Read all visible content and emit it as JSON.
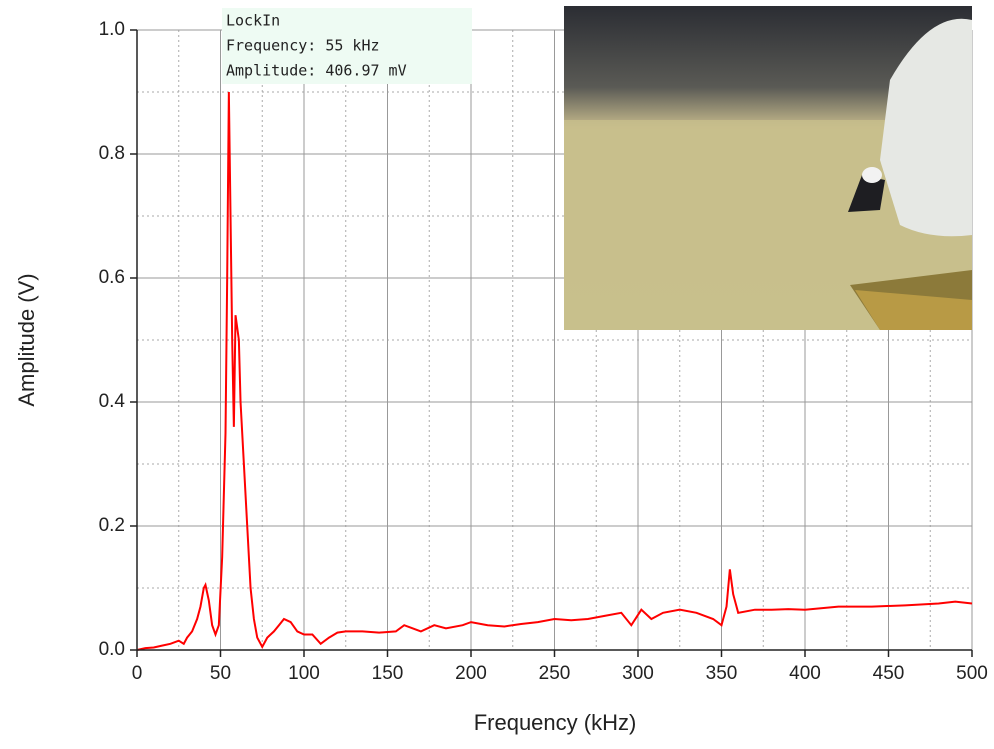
{
  "chart_data": {
    "type": "line",
    "xlabel": "Frequency (kHz)",
    "ylabel": "Amplitude (V)",
    "annotation": [
      "LockIn",
      "Frequency: 55 kHz",
      "Amplitude: 406.97 mV"
    ],
    "x": [
      0,
      5,
      10,
      15,
      20,
      25,
      28,
      30,
      33,
      36,
      38,
      40,
      41,
      43,
      45,
      47,
      49,
      51,
      53,
      54,
      55,
      56,
      57,
      58,
      59,
      60,
      61,
      62,
      64,
      66,
      68,
      70,
      72,
      75,
      78,
      82,
      85,
      88,
      92,
      96,
      100,
      105,
      110,
      115,
      120,
      125,
      135,
      145,
      155,
      160,
      165,
      170,
      178,
      185,
      195,
      200,
      210,
      220,
      230,
      240,
      250,
      260,
      270,
      280,
      290,
      296,
      302,
      308,
      315,
      325,
      335,
      345,
      350,
      353,
      355,
      357,
      360,
      370,
      380,
      390,
      400,
      420,
      440,
      460,
      480,
      490,
      500
    ],
    "series": [
      {
        "color": "#ff0000",
        "values": [
          0.0,
          0.003,
          0.004,
          0.007,
          0.01,
          0.015,
          0.01,
          0.02,
          0.03,
          0.05,
          0.07,
          0.1,
          0.105,
          0.08,
          0.04,
          0.025,
          0.04,
          0.15,
          0.35,
          0.6,
          0.9,
          0.7,
          0.5,
          0.36,
          0.54,
          0.52,
          0.5,
          0.4,
          0.3,
          0.2,
          0.1,
          0.05,
          0.02,
          0.005,
          0.02,
          0.03,
          0.04,
          0.05,
          0.045,
          0.03,
          0.025,
          0.025,
          0.01,
          0.02,
          0.028,
          0.03,
          0.03,
          0.028,
          0.03,
          0.04,
          0.035,
          0.03,
          0.04,
          0.035,
          0.04,
          0.045,
          0.04,
          0.038,
          0.042,
          0.045,
          0.05,
          0.048,
          0.05,
          0.055,
          0.06,
          0.04,
          0.065,
          0.05,
          0.06,
          0.065,
          0.06,
          0.05,
          0.04,
          0.07,
          0.13,
          0.09,
          0.06,
          0.065,
          0.065,
          0.066,
          0.065,
          0.07,
          0.07,
          0.072,
          0.075,
          0.078,
          0.075
        ]
      }
    ],
    "xlim": [
      0,
      500
    ],
    "ylim": [
      0,
      1
    ],
    "xticks": [
      0,
      50,
      100,
      150,
      200,
      250,
      300,
      350,
      400,
      450,
      500
    ],
    "yticks": [
      {
        "value": 0,
        "label": "0.0"
      },
      {
        "value": 0.2,
        "label": "0.2"
      },
      {
        "value": 0.4,
        "label": "0.4"
      },
      {
        "value": 0.6,
        "label": "0.6"
      },
      {
        "value": 0.8,
        "label": "0.8"
      },
      {
        "value": 1,
        "label": "1.0"
      }
    ],
    "grid": true
  }
}
